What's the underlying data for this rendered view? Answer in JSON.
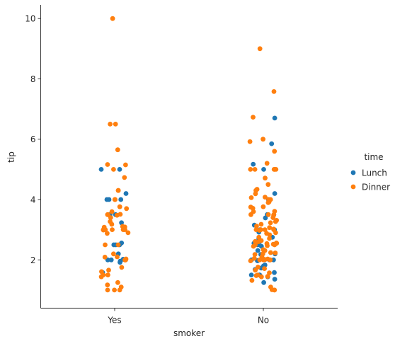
{
  "chart_data": {
    "type": "scatter",
    "subtype": "strip",
    "xlabel": "smoker",
    "ylabel": "tip",
    "categories": [
      "Yes",
      "No"
    ],
    "ylim": [
      0.4,
      10.45
    ],
    "yticks": [
      2,
      4,
      6,
      8,
      10
    ],
    "grid": false,
    "legend": {
      "title": "time",
      "placement": "right"
    },
    "series": [
      {
        "name": "Lunch",
        "color": "#1f77b4",
        "values_by_category": {
          "Yes": [
            5.0,
            4.2,
            4.0,
            4.0,
            4.0,
            3.5,
            3.5,
            3.23,
            2.56,
            2.5,
            2.5,
            2.2,
            2.02,
            2.0,
            2.0,
            1.96,
            1.92,
            1.58,
            5.0,
            2.5
          ],
          "No": [
            6.7,
            5.85,
            5.17,
            5.0,
            4.2,
            4.0,
            3.5,
            3.39,
            3.0,
            3.0,
            3.0,
            2.92,
            2.75,
            2.7,
            2.55,
            2.5,
            2.45,
            2.31,
            2.2,
            2.01,
            2.0,
            2.0,
            2.0,
            1.98,
            1.83,
            1.8,
            1.73,
            1.68,
            1.58,
            1.5,
            1.5,
            1.5,
            1.44,
            1.36,
            1.25,
            3.15,
            2.18,
            1.97,
            2.6
          ]
        }
      },
      {
        "name": "Dinner",
        "color": "#ff7f0e",
        "values_by_category": {
          "Yes": [
            10.0,
            6.5,
            6.5,
            5.65,
            5.16,
            5.15,
            5.0,
            4.73,
            4.3,
            4.3,
            4.0,
            4.0,
            3.76,
            3.7,
            3.6,
            3.51,
            3.5,
            3.48,
            3.4,
            3.27,
            3.18,
            3.11,
            3.09,
            3.08,
            3.0,
            3.0,
            3.0,
            3.0,
            2.99,
            2.9,
            2.88,
            2.5,
            2.5,
            2.2,
            2.1,
            2.09,
            2.03,
            2.0,
            2.0,
            2.0,
            2.0,
            1.75,
            1.66,
            1.61,
            1.5,
            1.5,
            1.44,
            1.25,
            1.17,
            1.1,
            1.0,
            1.0,
            1.0,
            3.0,
            3.5
          ],
          "No": [
            9.0,
            7.58,
            6.73,
            6.0,
            5.92,
            5.6,
            5.2,
            5.0,
            5.0,
            5.0,
            5.0,
            5.0,
            4.71,
            4.5,
            4.34,
            4.3,
            4.19,
            4.08,
            4.06,
            4.0,
            4.0,
            3.92,
            3.76,
            3.75,
            3.71,
            3.61,
            3.6,
            3.5,
            3.5,
            3.5,
            3.48,
            3.4,
            3.31,
            3.27,
            3.23,
            3.18,
            3.12,
            3.07,
            3.02,
            3.0,
            3.0,
            3.0,
            3.0,
            3.0,
            2.98,
            2.88,
            2.83,
            2.75,
            2.71,
            2.64,
            2.61,
            2.6,
            2.56,
            2.55,
            2.54,
            2.52,
            2.5,
            2.5,
            2.47,
            2.45,
            2.34,
            2.31,
            2.24,
            2.23,
            2.2,
            2.18,
            2.1,
            2.05,
            2.03,
            2.02,
            2.01,
            2.0,
            2.0,
            2.0,
            2.0,
            1.97,
            1.76,
            1.71,
            1.66,
            1.57,
            1.5,
            1.48,
            1.45,
            1.44,
            1.32,
            1.1,
            1.01,
            1.0,
            1.0,
            3.9,
            2.9
          ]
        }
      }
    ]
  }
}
